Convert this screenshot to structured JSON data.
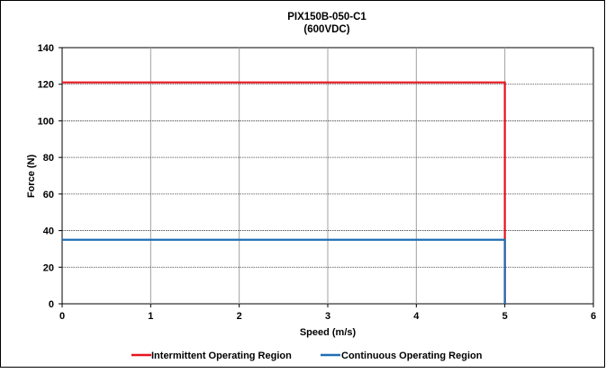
{
  "chart_data": {
    "type": "line",
    "title": "PIX150B-050-C1",
    "subtitle": "(600VDC)",
    "xlabel": "Speed (m/s)",
    "ylabel": "Force (N)",
    "xlim": [
      0,
      6
    ],
    "ylim": [
      0,
      140
    ],
    "x_ticks": [
      "0",
      "1",
      "2",
      "3",
      "4",
      "5",
      "6"
    ],
    "y_ticks": [
      "0",
      "20",
      "40",
      "60",
      "80",
      "100",
      "120",
      "140"
    ],
    "grid": true,
    "legend_position": "bottom",
    "series": [
      {
        "name": "Intermittent Operating Region",
        "color": "#e8141c",
        "points": [
          [
            0,
            121
          ],
          [
            5,
            121
          ],
          [
            5,
            0
          ]
        ]
      },
      {
        "name": "Continuous Operating Region",
        "color": "#1f6eb4",
        "points": [
          [
            0,
            35
          ],
          [
            5,
            35
          ],
          [
            5,
            0
          ]
        ]
      }
    ]
  }
}
